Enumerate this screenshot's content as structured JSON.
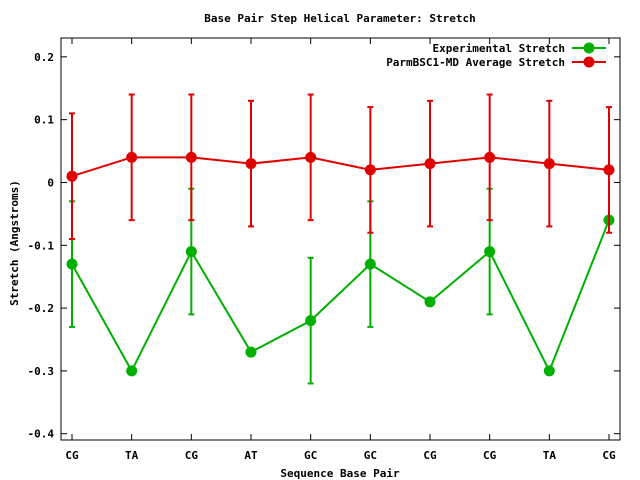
{
  "chart_data": {
    "type": "line",
    "title": "Base Pair Step Helical Parameter: Stretch",
    "xlabel": "Sequence Base Pair",
    "ylabel": "Stretch (Angstroms)",
    "categories": [
      "CG",
      "TA",
      "CG",
      "AT",
      "GC",
      "GC",
      "CG",
      "CG",
      "TA",
      "CG"
    ],
    "ylim": [
      -0.41,
      0.23
    ],
    "yticks": [
      0.2,
      0.1,
      0,
      -0.1,
      -0.2,
      -0.3,
      -0.4
    ],
    "ytick_labels": [
      "0.2",
      "0.1",
      "0",
      "-0.1",
      "-0.2",
      "-0.3",
      "-0.4"
    ],
    "legend_position": "top-right",
    "grid": false,
    "series": [
      {
        "name": "Experimental Stretch",
        "color": "#00b000",
        "values": [
          -0.13,
          -0.3,
          -0.11,
          -0.27,
          -0.22,
          -0.13,
          -0.19,
          -0.11,
          -0.3,
          -0.06
        ],
        "err_low": [
          -0.23,
          -0.3,
          -0.21,
          -0.27,
          -0.32,
          -0.23,
          -0.19,
          -0.21,
          -0.3,
          -0.06
        ],
        "err_high": [
          -0.03,
          -0.3,
          -0.01,
          -0.27,
          -0.12,
          -0.03,
          -0.19,
          -0.01,
          -0.3,
          -0.06
        ]
      },
      {
        "name": "ParmBSC1-MD Average Stretch",
        "color": "#e00000",
        "values": [
          0.01,
          0.04,
          0.04,
          0.03,
          0.04,
          0.02,
          0.03,
          0.04,
          0.03,
          0.02
        ],
        "err_low": [
          -0.09,
          -0.06,
          -0.06,
          -0.07,
          -0.06,
          -0.08,
          -0.07,
          -0.06,
          -0.07,
          -0.08
        ],
        "err_high": [
          0.11,
          0.14,
          0.14,
          0.13,
          0.14,
          0.12,
          0.13,
          0.14,
          0.13,
          0.12
        ]
      }
    ]
  }
}
